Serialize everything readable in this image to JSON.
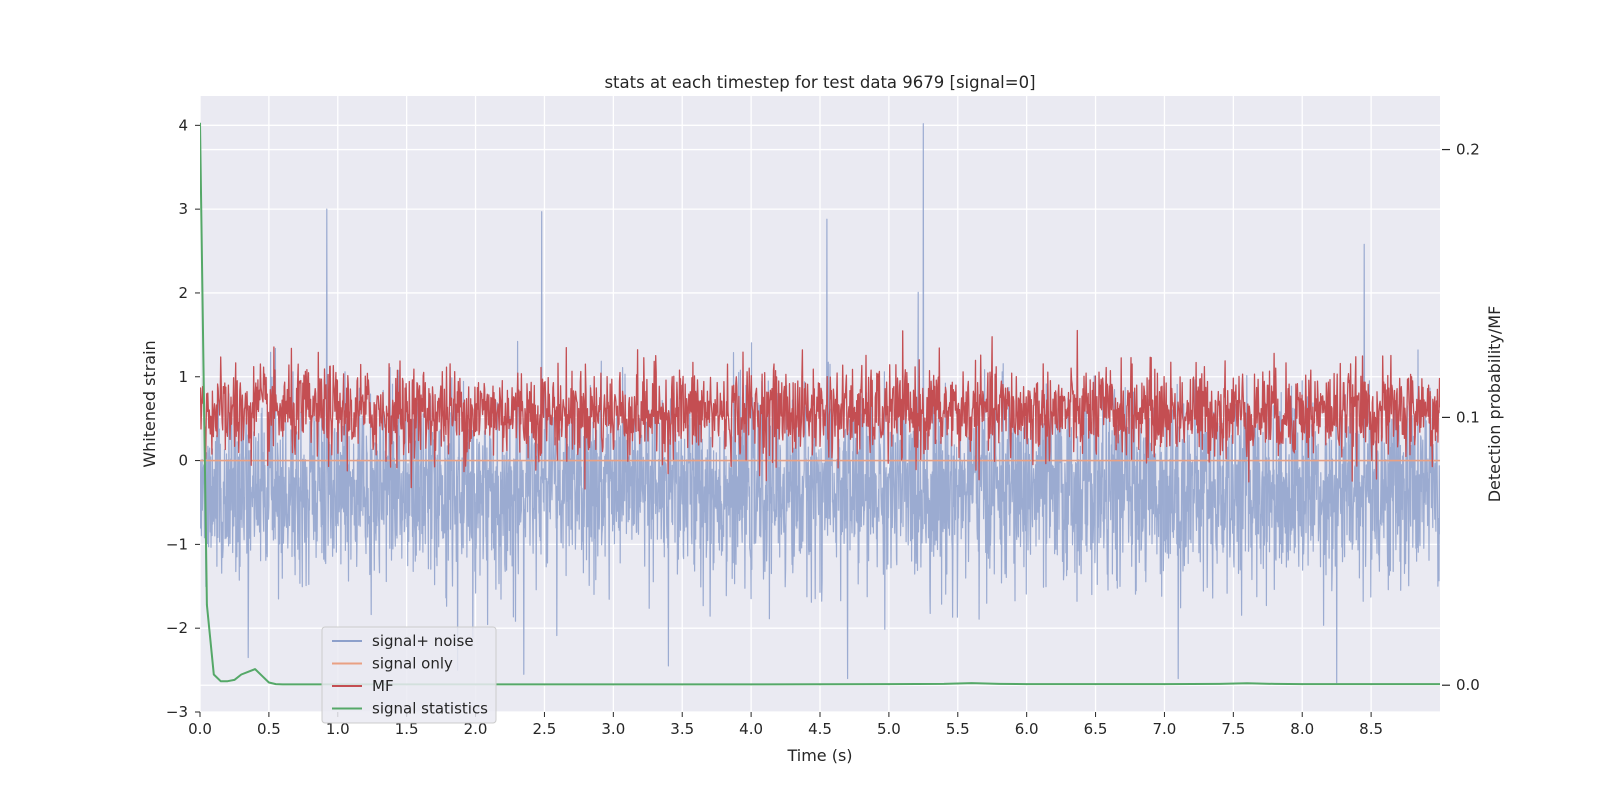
{
  "chart_data": {
    "type": "line",
    "title": "stats at each timestep for test data 9679 [signal=0]",
    "xlabel": "Time (s)",
    "ylabel": "Whitened strain",
    "y2label": "Detection probability/MF",
    "xlim": [
      0.0,
      9.0
    ],
    "ylim": [
      -3.0,
      4.35
    ],
    "y2lim": [
      -0.01,
      0.22
    ],
    "xticks": [
      0.0,
      0.5,
      1.0,
      1.5,
      2.0,
      2.5,
      3.0,
      3.5,
      4.0,
      4.5,
      5.0,
      5.5,
      6.0,
      6.5,
      7.0,
      7.5,
      8.0,
      8.5
    ],
    "xtick_labels": [
      "0.0",
      "0.5",
      "1.0",
      "1.5",
      "2.0",
      "2.5",
      "3.0",
      "3.5",
      "4.0",
      "4.5",
      "5.0",
      "5.5",
      "6.0",
      "6.5",
      "7.0",
      "7.5",
      "8.0",
      "8.5"
    ],
    "yticks": [
      -3,
      -2,
      -1,
      0,
      1,
      2,
      3,
      4
    ],
    "ytick_labels": [
      "−3",
      "−2",
      "−1",
      "0",
      "1",
      "2",
      "3",
      "4"
    ],
    "y2ticks": [
      0.0,
      0.1,
      0.2
    ],
    "y2tick_labels": [
      "0.0",
      "0.1",
      "0.2"
    ],
    "grid": true,
    "legend_position": "lower-left",
    "series": [
      {
        "name": "signal+ noise",
        "axis": "left",
        "color": "#8da0cb",
        "kind": "noise",
        "mean": -0.35,
        "spread": 0.55,
        "peaks": [
          [
            0.92,
            3.0
          ],
          [
            2.48,
            2.97
          ],
          [
            4.55,
            2.88
          ],
          [
            5.25,
            4.02
          ],
          [
            8.45,
            2.58
          ],
          [
            8.25,
            -2.65
          ],
          [
            1.87,
            -2.5
          ],
          [
            3.4,
            -2.45
          ],
          [
            4.7,
            -2.6
          ],
          [
            7.1,
            -2.6
          ],
          [
            2.35,
            -2.55
          ],
          [
            0.35,
            -2.35
          ]
        ]
      },
      {
        "name": "signal only",
        "axis": "left",
        "color": "#e9a083",
        "kind": "flat",
        "values": [
          0.0
        ]
      },
      {
        "name": "MF",
        "axis": "right",
        "color": "#c44e52",
        "kind": "noise",
        "mean": 0.102,
        "spread": 0.0085,
        "peaks": [
          [
            0.42,
            0.114
          ],
          [
            0.93,
            0.116
          ],
          [
            2.5,
            0.113
          ],
          [
            3.5,
            0.112
          ],
          [
            5.45,
            0.112
          ],
          [
            7.75,
            0.112
          ],
          [
            8.3,
            0.113
          ]
        ]
      },
      {
        "name": "signal statistics",
        "axis": "right",
        "color": "#55a868",
        "kind": "line",
        "x": [
          0.0,
          0.05,
          0.1,
          0.15,
          0.2,
          0.25,
          0.3,
          0.35,
          0.4,
          0.45,
          0.5,
          0.55,
          0.6,
          1.0,
          2.0,
          3.0,
          4.0,
          5.0,
          5.4,
          5.6,
          5.8,
          6.0,
          7.0,
          7.4,
          7.6,
          7.8,
          8.0,
          9.0
        ],
        "y": [
          0.21,
          0.03,
          0.004,
          0.0015,
          0.0015,
          0.002,
          0.004,
          0.005,
          0.006,
          0.0035,
          0.001,
          0.0004,
          0.0003,
          0.0003,
          0.0003,
          0.0003,
          0.0003,
          0.0004,
          0.0005,
          0.0008,
          0.0005,
          0.0004,
          0.0004,
          0.0005,
          0.0007,
          0.0005,
          0.0004,
          0.0004
        ]
      }
    ]
  }
}
